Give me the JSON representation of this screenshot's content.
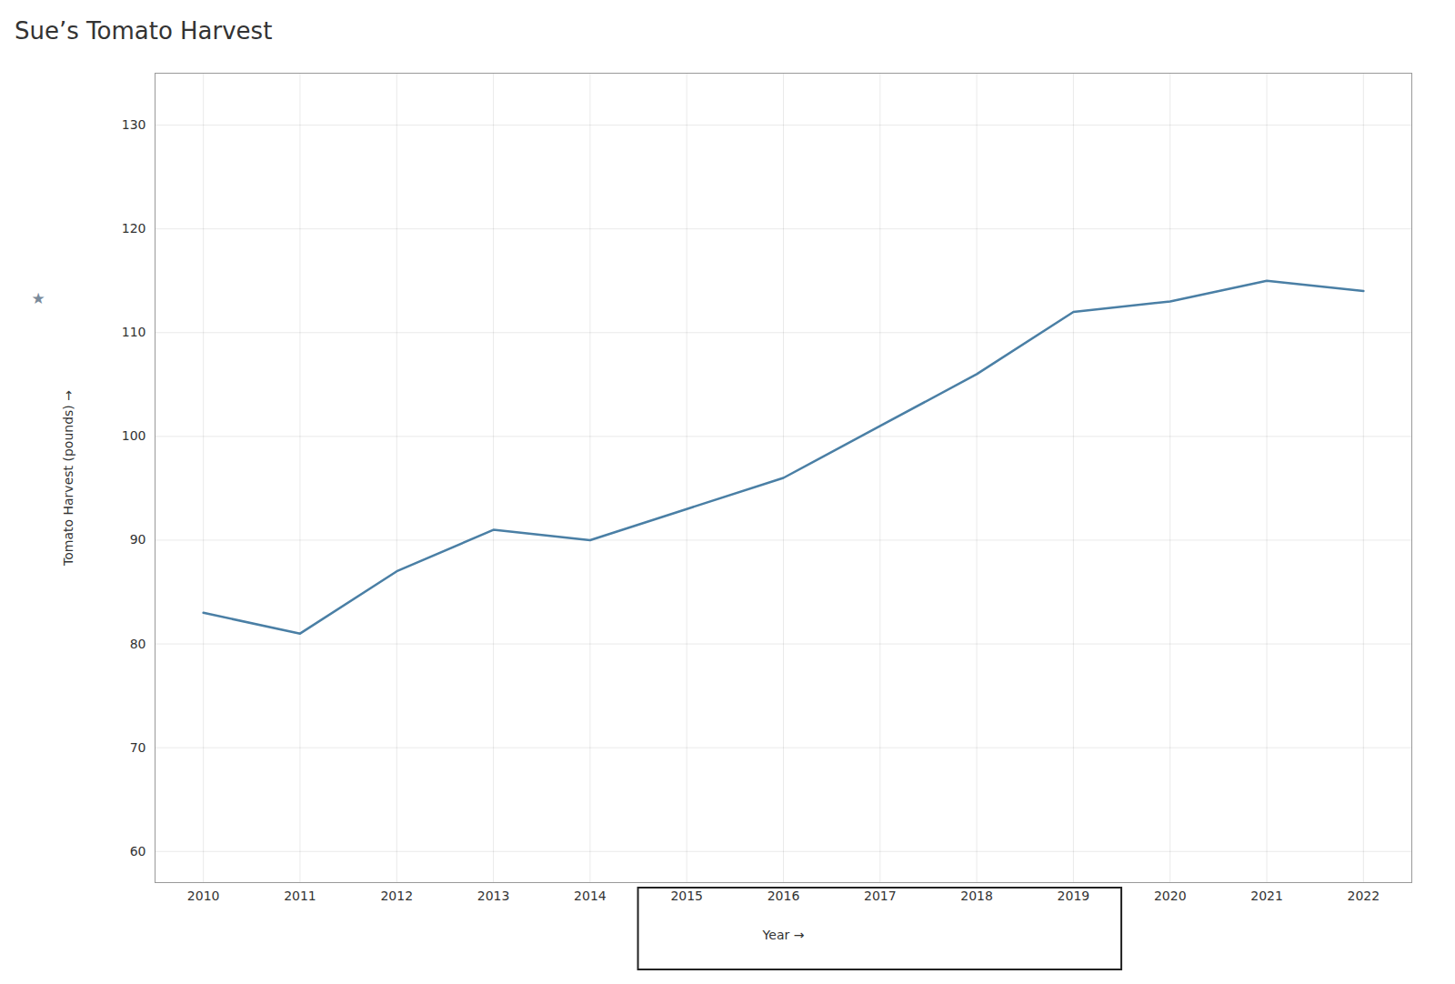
{
  "chart_data": {
    "type": "line",
    "title": "Sue’s Tomato Harvest",
    "xlabel": "Year",
    "ylabel": "Tomato Harvest (pounds)",
    "x": [
      2010,
      2011,
      2012,
      2013,
      2014,
      2015,
      2016,
      2017,
      2018,
      2019,
      2020,
      2021,
      2022
    ],
    "values": [
      83,
      81,
      87,
      91,
      90,
      93,
      96,
      101,
      106,
      112,
      113,
      115,
      114
    ],
    "color": "#4a7fa5",
    "xlim": [
      2009.5,
      2022.5
    ],
    "xticks": [
      2010,
      2011,
      2012,
      2013,
      2014,
      2015,
      2016,
      2017,
      2018,
      2019,
      2020,
      2021,
      2022
    ],
    "ylim": [
      57,
      135
    ],
    "yticks": [
      60,
      70,
      80,
      90,
      100,
      110,
      120,
      130
    ],
    "grid": true,
    "box": {
      "x": [
        2015,
        2019
      ],
      "color": "#222222"
    },
    "annotations": [
      {
        "text": "★",
        "color": "#7a8a9a"
      }
    ]
  }
}
